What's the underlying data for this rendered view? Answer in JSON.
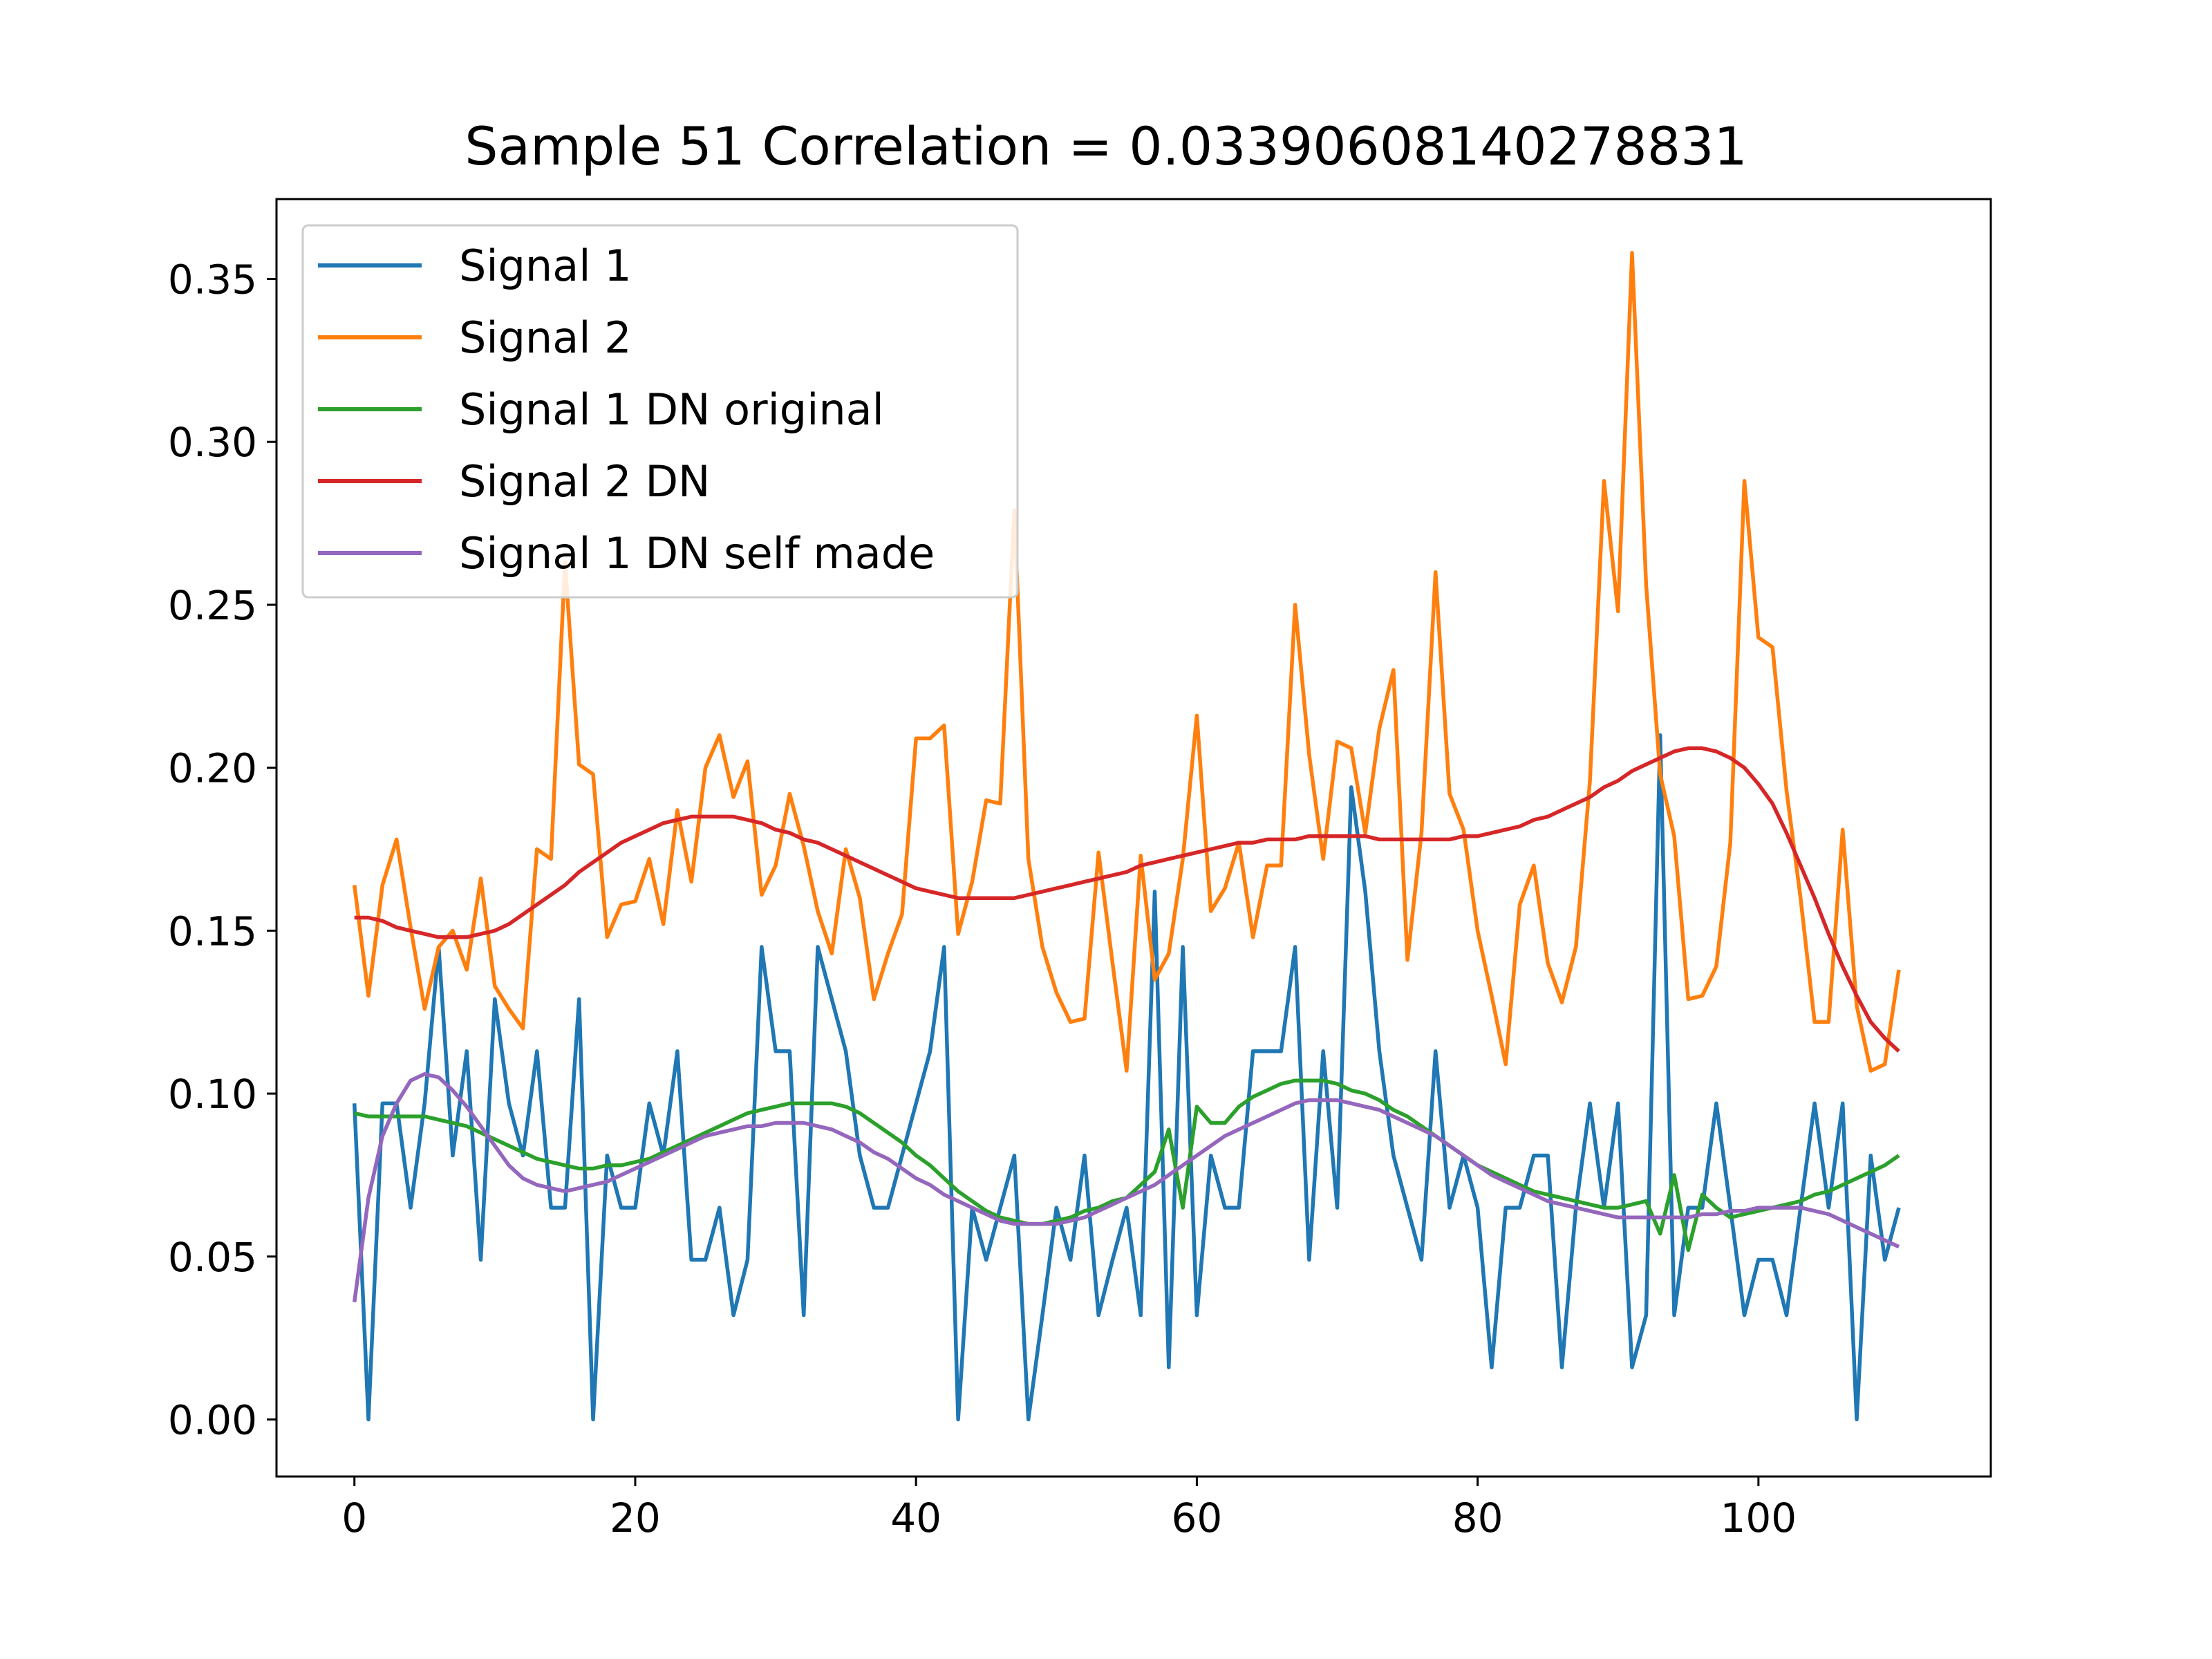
{
  "chart_data": {
    "type": "line",
    "title": "Sample 51 Correlation = 0.03390608140278831",
    "xlabel": "",
    "ylabel": "",
    "xlim": [
      -5.55,
      116.55
    ],
    "ylim": [
      -0.0175,
      0.3745
    ],
    "xticks": [
      0,
      20,
      40,
      60,
      80,
      100
    ],
    "xtick_labels": [
      "0",
      "20",
      "40",
      "60",
      "80",
      "100"
    ],
    "yticks": [
      0.0,
      0.05,
      0.1,
      0.15,
      0.2,
      0.25,
      0.3,
      0.35
    ],
    "ytick_labels": [
      "0.00",
      "0.05",
      "0.10",
      "0.15",
      "0.20",
      "0.25",
      "0.30",
      "0.35"
    ],
    "grid": false,
    "legend_position": "upper-left",
    "x": [
      0,
      1,
      2,
      3,
      4,
      5,
      6,
      7,
      8,
      9,
      10,
      11,
      12,
      13,
      14,
      15,
      16,
      17,
      18,
      19,
      20,
      21,
      22,
      23,
      24,
      25,
      26,
      27,
      28,
      29,
      30,
      31,
      32,
      33,
      34,
      35,
      36,
      37,
      38,
      39,
      40,
      41,
      42,
      43,
      44,
      45,
      46,
      47,
      48,
      49,
      50,
      51,
      52,
      53,
      54,
      55,
      56,
      57,
      58,
      59,
      60,
      61,
      62,
      63,
      64,
      65,
      66,
      67,
      68,
      69,
      70,
      71,
      72,
      73,
      74,
      75,
      76,
      77,
      78,
      79,
      80,
      81,
      82,
      83,
      84,
      85,
      86,
      87,
      88,
      89,
      90,
      91,
      92,
      93,
      94,
      95,
      96,
      97,
      98,
      99,
      100,
      101,
      102,
      103,
      104,
      105,
      106,
      107,
      108,
      109,
      110
    ],
    "series": [
      {
        "name": "Signal 1",
        "color": "#1f77b4",
        "values": [
          0.097,
          0.0,
          0.097,
          0.097,
          0.065,
          0.097,
          0.145,
          0.081,
          0.113,
          0.049,
          0.129,
          0.097,
          0.081,
          0.113,
          0.065,
          0.065,
          0.129,
          0.0,
          0.081,
          0.065,
          0.065,
          0.097,
          0.081,
          0.113,
          0.049,
          0.049,
          0.065,
          0.032,
          0.049,
          0.145,
          0.113,
          0.113,
          0.032,
          0.145,
          0.129,
          0.113,
          0.081,
          0.065,
          0.065,
          0.081,
          0.097,
          0.113,
          0.145,
          0.0,
          0.065,
          0.049,
          0.065,
          0.081,
          0.0,
          0.032,
          0.065,
          0.049,
          0.081,
          0.032,
          0.049,
          0.065,
          0.032,
          0.162,
          0.016,
          0.145,
          0.032,
          0.081,
          0.065,
          0.065,
          0.113,
          0.113,
          0.113,
          0.145,
          0.049,
          0.113,
          0.065,
          0.194,
          0.162,
          0.113,
          0.081,
          0.065,
          0.049,
          0.113,
          0.065,
          0.081,
          0.065,
          0.016,
          0.065,
          0.065,
          0.081,
          0.081,
          0.016,
          0.065,
          0.097,
          0.065,
          0.097,
          0.016,
          0.032,
          0.21,
          0.032,
          0.065,
          0.065,
          0.097,
          0.065,
          0.032,
          0.049,
          0.049,
          0.032,
          0.065,
          0.097,
          0.065,
          0.097,
          0.0,
          0.081,
          0.049,
          0.065
        ]
      },
      {
        "name": "Signal 2",
        "color": "#ff7f0e",
        "values": [
          0.164,
          0.13,
          0.164,
          0.178,
          0.151,
          0.126,
          0.145,
          0.15,
          0.138,
          0.166,
          0.133,
          0.126,
          0.12,
          0.175,
          0.172,
          0.263,
          0.201,
          0.198,
          0.148,
          0.158,
          0.159,
          0.172,
          0.152,
          0.187,
          0.165,
          0.2,
          0.21,
          0.191,
          0.202,
          0.161,
          0.17,
          0.192,
          0.176,
          0.156,
          0.143,
          0.175,
          0.16,
          0.129,
          0.143,
          0.155,
          0.209,
          0.209,
          0.213,
          0.149,
          0.165,
          0.19,
          0.189,
          0.279,
          0.172,
          0.145,
          0.131,
          0.122,
          0.123,
          0.174,
          0.14,
          0.107,
          0.173,
          0.135,
          0.143,
          0.172,
          0.216,
          0.156,
          0.163,
          0.177,
          0.148,
          0.17,
          0.17,
          0.25,
          0.204,
          0.172,
          0.208,
          0.206,
          0.18,
          0.212,
          0.23,
          0.141,
          0.18,
          0.26,
          0.192,
          0.181,
          0.15,
          0.13,
          0.109,
          0.158,
          0.17,
          0.14,
          0.128,
          0.145,
          0.196,
          0.288,
          0.248,
          0.358,
          0.256,
          0.198,
          0.179,
          0.129,
          0.13,
          0.139,
          0.177,
          0.288,
          0.24,
          0.237,
          0.193,
          0.16,
          0.122,
          0.122,
          0.181,
          0.127,
          0.107,
          0.109,
          0.138
        ]
      },
      {
        "name": "Signal 1 DN original",
        "color": "#2ca02c",
        "values": [
          0.094,
          0.093,
          0.093,
          0.093,
          0.093,
          0.093,
          0.092,
          0.091,
          0.09,
          0.088,
          0.086,
          0.084,
          0.082,
          0.08,
          0.079,
          0.078,
          0.077,
          0.077,
          0.078,
          0.078,
          0.079,
          0.08,
          0.082,
          0.084,
          0.086,
          0.088,
          0.09,
          0.092,
          0.094,
          0.095,
          0.096,
          0.097,
          0.097,
          0.097,
          0.097,
          0.096,
          0.094,
          0.091,
          0.088,
          0.085,
          0.081,
          0.078,
          0.074,
          0.07,
          0.067,
          0.064,
          0.062,
          0.061,
          0.06,
          0.06,
          0.061,
          0.062,
          0.064,
          0.065,
          0.067,
          0.068,
          0.072,
          0.076,
          0.089,
          0.065,
          0.096,
          0.091,
          0.091,
          0.096,
          0.099,
          0.101,
          0.103,
          0.104,
          0.104,
          0.104,
          0.103,
          0.101,
          0.1,
          0.098,
          0.095,
          0.093,
          0.09,
          0.087,
          0.084,
          0.081,
          0.078,
          0.076,
          0.074,
          0.072,
          0.07,
          0.069,
          0.068,
          0.067,
          0.066,
          0.065,
          0.065,
          0.066,
          0.067,
          0.057,
          0.075,
          0.052,
          0.069,
          0.065,
          0.062,
          0.063,
          0.064,
          0.065,
          0.066,
          0.067,
          0.069,
          0.07,
          0.072,
          0.074,
          0.076,
          0.078,
          0.081
        ]
      },
      {
        "name": "Signal 2 DN",
        "color": "#d62728",
        "values": [
          0.154,
          0.154,
          0.153,
          0.151,
          0.15,
          0.149,
          0.148,
          0.148,
          0.148,
          0.149,
          0.15,
          0.152,
          0.155,
          0.158,
          0.161,
          0.164,
          0.168,
          0.171,
          0.174,
          0.177,
          0.179,
          0.181,
          0.183,
          0.184,
          0.185,
          0.185,
          0.185,
          0.185,
          0.184,
          0.183,
          0.181,
          0.18,
          0.178,
          0.177,
          0.175,
          0.173,
          0.171,
          0.169,
          0.167,
          0.165,
          0.163,
          0.162,
          0.161,
          0.16,
          0.16,
          0.16,
          0.16,
          0.16,
          0.161,
          0.162,
          0.163,
          0.164,
          0.165,
          0.166,
          0.167,
          0.168,
          0.17,
          0.171,
          0.172,
          0.173,
          0.174,
          0.175,
          0.176,
          0.177,
          0.177,
          0.178,
          0.178,
          0.178,
          0.179,
          0.179,
          0.179,
          0.179,
          0.179,
          0.178,
          0.178,
          0.178,
          0.178,
          0.178,
          0.178,
          0.179,
          0.179,
          0.18,
          0.181,
          0.182,
          0.184,
          0.185,
          0.187,
          0.189,
          0.191,
          0.194,
          0.196,
          0.199,
          0.201,
          0.203,
          0.205,
          0.206,
          0.206,
          0.205,
          0.203,
          0.2,
          0.195,
          0.189,
          0.18,
          0.17,
          0.16,
          0.149,
          0.139,
          0.13,
          0.122,
          0.117,
          0.113
        ]
      },
      {
        "name": "Signal 1 DN self made",
        "color": "#9467bd",
        "values": [
          0.036,
          0.068,
          0.087,
          0.097,
          0.104,
          0.106,
          0.105,
          0.101,
          0.096,
          0.09,
          0.084,
          0.078,
          0.074,
          0.072,
          0.071,
          0.07,
          0.071,
          0.072,
          0.073,
          0.075,
          0.077,
          0.079,
          0.081,
          0.083,
          0.085,
          0.087,
          0.088,
          0.089,
          0.09,
          0.09,
          0.091,
          0.091,
          0.091,
          0.09,
          0.089,
          0.087,
          0.085,
          0.082,
          0.08,
          0.077,
          0.074,
          0.072,
          0.069,
          0.067,
          0.065,
          0.063,
          0.061,
          0.06,
          0.06,
          0.06,
          0.06,
          0.061,
          0.062,
          0.064,
          0.066,
          0.068,
          0.07,
          0.072,
          0.075,
          0.078,
          0.081,
          0.084,
          0.087,
          0.089,
          0.091,
          0.093,
          0.095,
          0.097,
          0.098,
          0.098,
          0.098,
          0.097,
          0.096,
          0.095,
          0.093,
          0.091,
          0.089,
          0.087,
          0.084,
          0.081,
          0.078,
          0.075,
          0.073,
          0.071,
          0.069,
          0.067,
          0.066,
          0.065,
          0.064,
          0.063,
          0.062,
          0.062,
          0.062,
          0.062,
          0.062,
          0.062,
          0.063,
          0.063,
          0.064,
          0.064,
          0.065,
          0.065,
          0.065,
          0.065,
          0.064,
          0.063,
          0.061,
          0.059,
          0.057,
          0.055,
          0.053
        ]
      }
    ]
  }
}
